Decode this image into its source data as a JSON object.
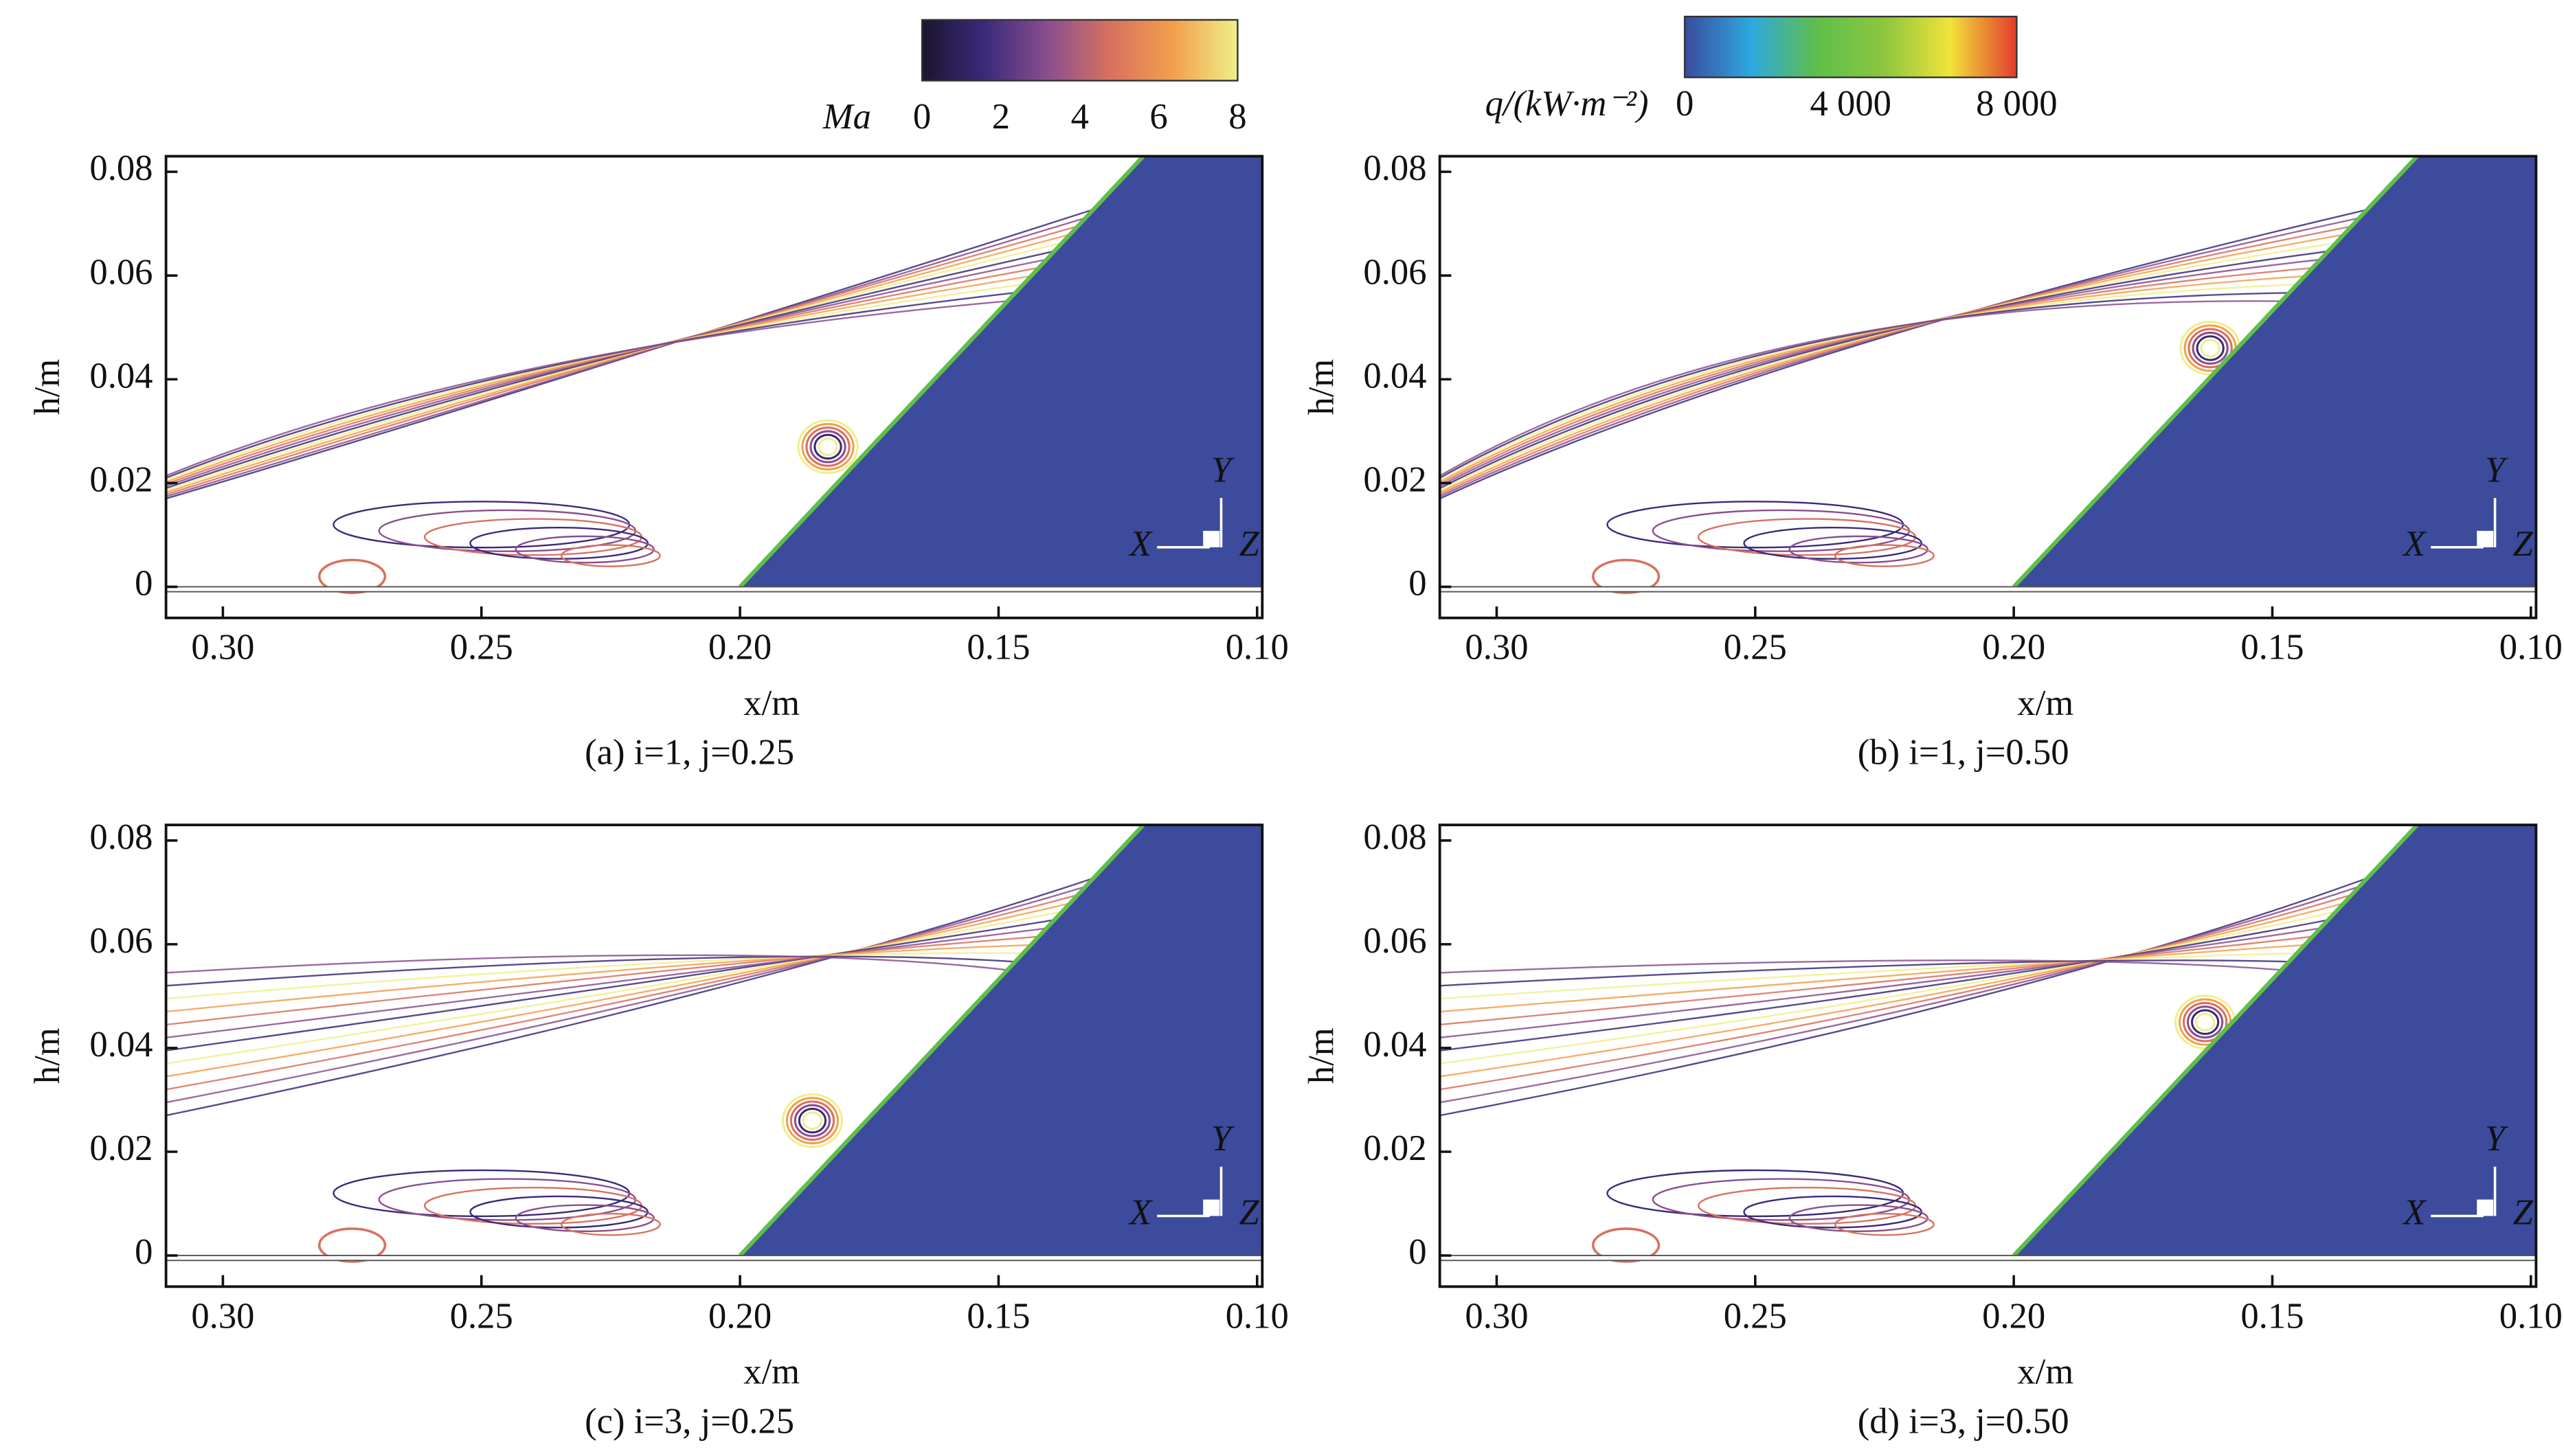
{
  "colorbars": [
    {
      "label": "Ma",
      "lim": [
        0,
        8
      ],
      "ticks": [
        0,
        2,
        4,
        6,
        8
      ],
      "colors": [
        "#1b1530",
        "#3b2a7a",
        "#8a4f8f",
        "#d8725e",
        "#f3a04c",
        "#eef08a"
      ]
    },
    {
      "label": "q/(kW·m⁻²)",
      "lim": [
        0,
        8000
      ],
      "ticks": [
        0,
        {
          "value": 4000,
          "label": "4 000"
        },
        {
          "value": 8000,
          "label": "8 000"
        }
      ],
      "colors": [
        "#3b4b9e",
        "#2ea8e0",
        "#5fbf4a",
        "#8cc63f",
        "#f1e33a",
        "#e23b2d"
      ]
    }
  ],
  "triad": [
    "X",
    "Y",
    "Z"
  ],
  "chart_data": [
    {
      "type": "contour",
      "caption": "(a) i=1, j=0.25",
      "xlabel": "x/m",
      "ylabel": "h/m",
      "xlim": [
        0.311,
        0.099
      ],
      "ylim": [
        -0.006,
        0.083
      ],
      "xticks": [
        {
          "value": 0.3,
          "label": "0.30"
        },
        0.25,
        {
          "value": 0.2,
          "label": "0.20"
        },
        0.15,
        {
          "value": 0.1,
          "label": "0.10"
        }
      ],
      "yticks": [
        0,
        0.02,
        0.04,
        0.06,
        0.08
      ]
    },
    {
      "type": "contour",
      "caption": "(b) i=1, j=0.50",
      "xlabel": "x/m",
      "ylabel": "h/m",
      "xlim": [
        0.311,
        0.099
      ],
      "ylim": [
        -0.006,
        0.083
      ],
      "xticks": [
        {
          "value": 0.3,
          "label": "0.30"
        },
        0.25,
        {
          "value": 0.2,
          "label": "0.20"
        },
        0.15,
        {
          "value": 0.1,
          "label": "0.10"
        }
      ],
      "yticks": [
        0,
        0.02,
        0.04,
        0.06,
        0.08
      ]
    },
    {
      "type": "contour",
      "caption": "(c) i=3, j=0.25",
      "xlabel": "x/m",
      "ylabel": "h/m",
      "xlim": [
        0.311,
        0.099
      ],
      "ylim": [
        -0.006,
        0.083
      ],
      "xticks": [
        {
          "value": 0.3,
          "label": "0.30"
        },
        0.25,
        {
          "value": 0.2,
          "label": "0.20"
        },
        0.15,
        {
          "value": 0.1,
          "label": "0.10"
        }
      ],
      "yticks": [
        0,
        0.02,
        0.04,
        0.06,
        0.08
      ]
    },
    {
      "type": "contour",
      "caption": "(d) i=3, j=0.50",
      "xlabel": "x/m",
      "ylabel": "h/m",
      "xlim": [
        0.311,
        0.099
      ],
      "ylim": [
        -0.006,
        0.083
      ],
      "xticks": [
        {
          "value": 0.3,
          "label": "0.30"
        },
        0.25,
        {
          "value": 0.2,
          "label": "0.20"
        },
        0.15,
        {
          "value": 0.1,
          "label": "0.10"
        }
      ],
      "yticks": [
        0,
        0.02,
        0.04,
        0.06,
        0.08
      ]
    }
  ]
}
